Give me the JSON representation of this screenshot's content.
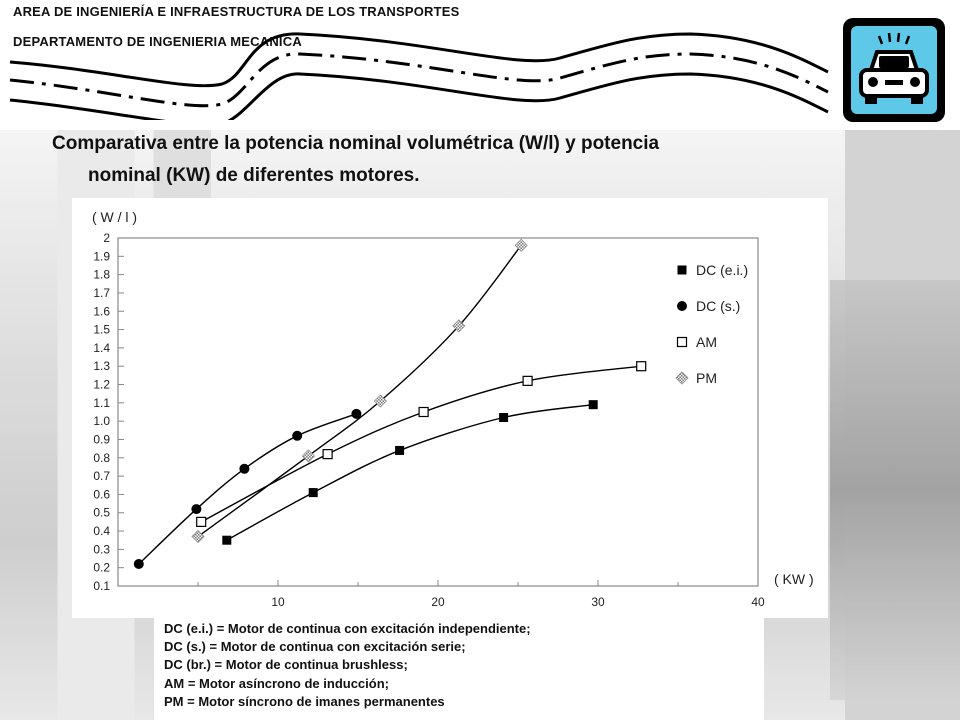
{
  "header": {
    "org_line1": "AREA DE INGENIERÍA E INFRAESTRUCTURA DE LOS TRANSPORTES",
    "org_line2": "DEPARTAMENTO DE INGENIERIA MECANICA"
  },
  "title": {
    "line1": "Comparativa entre la potencia nominal volumétrica (W/l) y potencia",
    "line2": "nominal (KW) de diferentes motores."
  },
  "caption": [
    "DC (e.i.) = Motor de continua con excitación independiente;",
    "DC (s.) = Motor de continua con excitación serie;",
    "DC (br.) = Motor de continua brushless;",
    "AM = Motor asíncrono de inducción;",
    "PM = Motor síncrono de imanes permanentes"
  ],
  "chart_data": {
    "type": "scatter",
    "ylabel": "( W / l )",
    "xlabel": "( KW )",
    "xlim": [
      0,
      40
    ],
    "ylim": [
      0.1,
      2.0
    ],
    "x_ticks": [
      "10",
      "20",
      "30",
      "40"
    ],
    "y_ticks": [
      "0.1",
      "0.2",
      "0.3",
      "0.4",
      "0.5",
      "0.6",
      "0.7",
      "0.8",
      "0.9",
      "1.0",
      "1.1",
      "1.2",
      "1.3",
      "1.4",
      "1.5",
      "1.6",
      "1.7",
      "1.8",
      "1.9",
      "2"
    ],
    "grid": false,
    "legend_position": "right",
    "series": [
      {
        "name": "DC (e.i.)",
        "marker": "square-filled",
        "color": "#000000",
        "x": [
          6.8,
          12.2,
          17.6,
          24.1,
          29.7
        ],
        "y": [
          0.35,
          0.61,
          0.84,
          1.02,
          1.09
        ]
      },
      {
        "name": "DC (s.)",
        "marker": "circle-filled",
        "color": "#000000",
        "x": [
          1.3,
          4.9,
          7.9,
          11.2,
          14.9
        ],
        "y": [
          0.22,
          0.52,
          0.74,
          0.92,
          1.04
        ]
      },
      {
        "name": "AM",
        "marker": "square-open",
        "color": "#000000",
        "x": [
          5.2,
          13.1,
          19.1,
          25.6,
          32.7
        ],
        "y": [
          0.45,
          0.82,
          1.05,
          1.22,
          1.3
        ]
      },
      {
        "name": "PM",
        "marker": "diamond-hatched",
        "color": "#888888",
        "x": [
          5.0,
          11.9,
          16.4,
          21.3,
          25.2
        ],
        "y": [
          0.37,
          0.81,
          1.11,
          1.52,
          1.96
        ]
      }
    ]
  }
}
